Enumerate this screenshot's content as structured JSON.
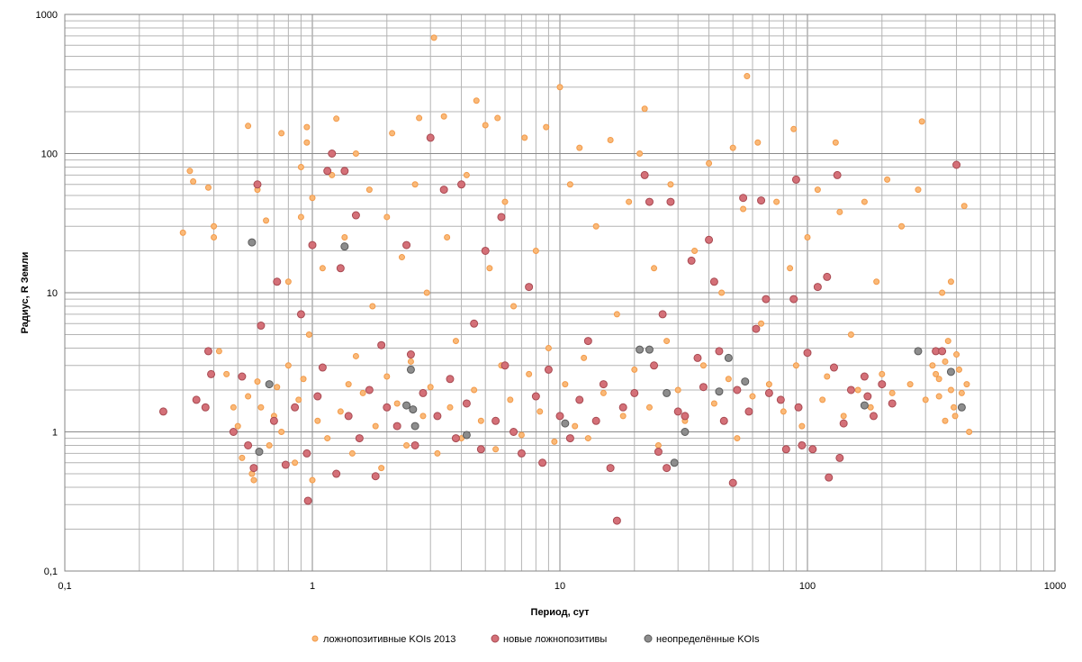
{
  "chart_data": {
    "type": "scatter",
    "title": "",
    "xlabel": "Период, сут",
    "ylabel": "Радиус, R Земли",
    "xscale": "log",
    "yscale": "log",
    "xlim": [
      0.1,
      1000
    ],
    "ylim": [
      0.1,
      1000
    ],
    "x_ticks": [
      "0,1",
      "1",
      "10",
      "100",
      "1000"
    ],
    "y_ticks": [
      "0,1",
      "1",
      "10",
      "100",
      "1000"
    ],
    "grid": "major and minor",
    "legend_position": "bottom",
    "series": [
      {
        "name": "ложнопозитивные KOIs 2013",
        "color": "#fab978",
        "edge": "#f29a4a",
        "points": [
          [
            0.3,
            27
          ],
          [
            0.32,
            75
          ],
          [
            0.33,
            63
          ],
          [
            0.38,
            57
          ],
          [
            0.4,
            25
          ],
          [
            0.4,
            30
          ],
          [
            0.42,
            3.8
          ],
          [
            0.45,
            2.6
          ],
          [
            0.48,
            1.5
          ],
          [
            0.5,
            1.1
          ],
          [
            0.52,
            0.65
          ],
          [
            0.55,
            158
          ],
          [
            0.55,
            1.8
          ],
          [
            0.57,
            0.5
          ],
          [
            0.58,
            0.45
          ],
          [
            0.6,
            55
          ],
          [
            0.6,
            2.3
          ],
          [
            0.62,
            1.5
          ],
          [
            0.65,
            33
          ],
          [
            0.67,
            0.8
          ],
          [
            0.7,
            1.3
          ],
          [
            0.72,
            2.1
          ],
          [
            0.75,
            140
          ],
          [
            0.75,
            1.0
          ],
          [
            0.8,
            12
          ],
          [
            0.8,
            3.0
          ],
          [
            0.85,
            0.6
          ],
          [
            0.88,
            1.7
          ],
          [
            0.9,
            80
          ],
          [
            0.9,
            35
          ],
          [
            0.92,
            2.4
          ],
          [
            0.95,
            155
          ],
          [
            0.95,
            120
          ],
          [
            0.97,
            5.0
          ],
          [
            1.0,
            48
          ],
          [
            1.0,
            0.45
          ],
          [
            1.05,
            1.2
          ],
          [
            1.1,
            2.9
          ],
          [
            1.1,
            15
          ],
          [
            1.15,
            0.9
          ],
          [
            1.2,
            70
          ],
          [
            1.25,
            178
          ],
          [
            1.3,
            1.4
          ],
          [
            1.35,
            25
          ],
          [
            1.4,
            2.2
          ],
          [
            1.45,
            0.7
          ],
          [
            1.5,
            100
          ],
          [
            1.5,
            3.5
          ],
          [
            1.6,
            1.9
          ],
          [
            1.7,
            55
          ],
          [
            1.75,
            8.0
          ],
          [
            1.8,
            1.1
          ],
          [
            1.9,
            0.55
          ],
          [
            2.0,
            2.5
          ],
          [
            2.0,
            35
          ],
          [
            2.1,
            140
          ],
          [
            2.2,
            1.6
          ],
          [
            2.3,
            18
          ],
          [
            2.4,
            0.8
          ],
          [
            2.5,
            3.2
          ],
          [
            2.6,
            60
          ],
          [
            2.7,
            180
          ],
          [
            2.8,
            1.3
          ],
          [
            2.9,
            10
          ],
          [
            3.0,
            2.1
          ],
          [
            3.1,
            680
          ],
          [
            3.2,
            0.7
          ],
          [
            3.4,
            185
          ],
          [
            3.5,
            25
          ],
          [
            3.6,
            1.5
          ],
          [
            3.8,
            4.5
          ],
          [
            4.0,
            0.9
          ],
          [
            4.2,
            70
          ],
          [
            4.5,
            2.0
          ],
          [
            4.6,
            240
          ],
          [
            4.8,
            1.2
          ],
          [
            5.0,
            160
          ],
          [
            5.2,
            15
          ],
          [
            5.5,
            0.75
          ],
          [
            5.6,
            180
          ],
          [
            5.8,
            3.0
          ],
          [
            6.0,
            45
          ],
          [
            6.3,
            1.7
          ],
          [
            6.5,
            8
          ],
          [
            7.0,
            0.95
          ],
          [
            7.2,
            130
          ],
          [
            7.5,
            2.6
          ],
          [
            8.0,
            20
          ],
          [
            8.3,
            1.4
          ],
          [
            8.8,
            155
          ],
          [
            9.0,
            4.0
          ],
          [
            9.5,
            0.85
          ],
          [
            10,
            300
          ],
          [
            10.5,
            2.2
          ],
          [
            11,
            60
          ],
          [
            11.5,
            1.1
          ],
          [
            12,
            110
          ],
          [
            12.5,
            3.4
          ],
          [
            13,
            0.9
          ],
          [
            14,
            30
          ],
          [
            15,
            1.9
          ],
          [
            16,
            125
          ],
          [
            17,
            7
          ],
          [
            18,
            1.3
          ],
          [
            19,
            45
          ],
          [
            20,
            2.8
          ],
          [
            21,
            100
          ],
          [
            22,
            210
          ],
          [
            23,
            1.5
          ],
          [
            24,
            15
          ],
          [
            25,
            0.8
          ],
          [
            27,
            4.5
          ],
          [
            28,
            60
          ],
          [
            30,
            2.0
          ],
          [
            32,
            1.2
          ],
          [
            35,
            20
          ],
          [
            38,
            3.0
          ],
          [
            40,
            85
          ],
          [
            42,
            1.6
          ],
          [
            45,
            10
          ],
          [
            48,
            2.4
          ],
          [
            50,
            110
          ],
          [
            52,
            0.9
          ],
          [
            55,
            40
          ],
          [
            57,
            360
          ],
          [
            60,
            1.8
          ],
          [
            63,
            120
          ],
          [
            65,
            6
          ],
          [
            70,
            2.2
          ],
          [
            75,
            45
          ],
          [
            80,
            1.4
          ],
          [
            85,
            15
          ],
          [
            88,
            150
          ],
          [
            90,
            3.0
          ],
          [
            95,
            1.1
          ],
          [
            100,
            25
          ],
          [
            110,
            55
          ],
          [
            115,
            1.7
          ],
          [
            120,
            2.5
          ],
          [
            130,
            120
          ],
          [
            135,
            38
          ],
          [
            140,
            1.3
          ],
          [
            150,
            5
          ],
          [
            160,
            2.0
          ],
          [
            170,
            45
          ],
          [
            180,
            1.5
          ],
          [
            190,
            12
          ],
          [
            200,
            2.6
          ],
          [
            210,
            65
          ],
          [
            220,
            1.9
          ],
          [
            240,
            30
          ],
          [
            260,
            2.2
          ],
          [
            280,
            55
          ],
          [
            290,
            170
          ],
          [
            300,
            1.7
          ],
          [
            320,
            3.0
          ],
          [
            340,
            2.4
          ],
          [
            350,
            10
          ],
          [
            360,
            1.2
          ],
          [
            370,
            4.5
          ],
          [
            380,
            2.0
          ],
          [
            390,
            1.5
          ],
          [
            400,
            3.6
          ],
          [
            410,
            2.8
          ],
          [
            420,
            1.9
          ],
          [
            430,
            42
          ],
          [
            440,
            2.2
          ],
          [
            450,
            1.0
          ],
          [
            380,
            12
          ],
          [
            360,
            3.2
          ],
          [
            340,
            1.8
          ],
          [
            330,
            2.6
          ],
          [
            395,
            1.3
          ]
        ]
      },
      {
        "name": "новые ложнопозитивы",
        "color": "#d47078",
        "edge": "#a84a52",
        "points": [
          [
            0.25,
            1.4
          ],
          [
            0.34,
            1.7
          ],
          [
            0.37,
            1.5
          ],
          [
            0.38,
            3.8
          ],
          [
            0.39,
            2.6
          ],
          [
            0.48,
            1.0
          ],
          [
            0.52,
            2.5
          ],
          [
            0.55,
            0.8
          ],
          [
            0.58,
            0.55
          ],
          [
            0.6,
            60
          ],
          [
            0.62,
            5.8
          ],
          [
            0.7,
            1.2
          ],
          [
            0.72,
            12
          ],
          [
            0.78,
            0.58
          ],
          [
            0.85,
            1.5
          ],
          [
            0.9,
            7
          ],
          [
            0.95,
            0.7
          ],
          [
            0.96,
            0.32
          ],
          [
            1.0,
            22
          ],
          [
            1.05,
            1.8
          ],
          [
            1.1,
            2.9
          ],
          [
            1.15,
            75
          ],
          [
            1.2,
            100
          ],
          [
            1.25,
            0.5
          ],
          [
            1.3,
            15
          ],
          [
            1.35,
            75
          ],
          [
            1.4,
            1.3
          ],
          [
            1.5,
            36
          ],
          [
            1.55,
            0.9
          ],
          [
            1.7,
            2.0
          ],
          [
            1.8,
            0.48
          ],
          [
            1.9,
            4.2
          ],
          [
            2.0,
            1.5
          ],
          [
            2.2,
            1.1
          ],
          [
            2.4,
            22
          ],
          [
            2.5,
            3.6
          ],
          [
            2.6,
            0.8
          ],
          [
            2.8,
            1.9
          ],
          [
            3.0,
            130
          ],
          [
            3.2,
            1.3
          ],
          [
            3.4,
            55
          ],
          [
            3.6,
            2.4
          ],
          [
            3.8,
            0.9
          ],
          [
            4.0,
            60
          ],
          [
            4.2,
            1.6
          ],
          [
            4.5,
            6
          ],
          [
            4.8,
            0.75
          ],
          [
            5.0,
            20
          ],
          [
            5.5,
            1.2
          ],
          [
            5.8,
            35
          ],
          [
            6.0,
            3.0
          ],
          [
            6.5,
            1.0
          ],
          [
            7.0,
            0.7
          ],
          [
            7.5,
            11
          ],
          [
            8.0,
            1.8
          ],
          [
            8.5,
            0.6
          ],
          [
            9.0,
            2.8
          ],
          [
            10,
            1.3
          ],
          [
            11,
            0.9
          ],
          [
            12,
            1.7
          ],
          [
            13,
            4.5
          ],
          [
            14,
            1.2
          ],
          [
            15,
            2.2
          ],
          [
            16,
            0.55
          ],
          [
            17,
            0.23
          ],
          [
            18,
            1.5
          ],
          [
            20,
            1.9
          ],
          [
            22,
            70
          ],
          [
            23,
            45
          ],
          [
            24,
            3.0
          ],
          [
            25,
            0.72
          ],
          [
            26,
            7
          ],
          [
            27,
            0.55
          ],
          [
            28,
            45
          ],
          [
            30,
            1.4
          ],
          [
            32,
            1.3
          ],
          [
            34,
            17
          ],
          [
            36,
            3.4
          ],
          [
            38,
            2.1
          ],
          [
            40,
            24
          ],
          [
            42,
            12
          ],
          [
            44,
            3.8
          ],
          [
            46,
            1.2
          ],
          [
            50,
            0.43
          ],
          [
            52,
            2.0
          ],
          [
            55,
            48
          ],
          [
            58,
            1.4
          ],
          [
            62,
            5.5
          ],
          [
            65,
            46
          ],
          [
            68,
            9
          ],
          [
            70,
            1.9
          ],
          [
            78,
            1.7
          ],
          [
            82,
            0.75
          ],
          [
            88,
            9
          ],
          [
            90,
            65
          ],
          [
            92,
            1.5
          ],
          [
            95,
            0.8
          ],
          [
            100,
            3.7
          ],
          [
            105,
            0.75
          ],
          [
            110,
            11
          ],
          [
            120,
            13
          ],
          [
            122,
            0.47
          ],
          [
            128,
            2.9
          ],
          [
            132,
            70
          ],
          [
            135,
            0.65
          ],
          [
            140,
            1.15
          ],
          [
            150,
            2.0
          ],
          [
            170,
            2.5
          ],
          [
            175,
            1.8
          ],
          [
            185,
            1.3
          ],
          [
            200,
            2.2
          ],
          [
            220,
            1.6
          ],
          [
            330,
            3.8
          ],
          [
            350,
            3.8
          ],
          [
            400,
            83
          ]
        ]
      },
      {
        "name": "неопределённые  KOIs",
        "color": "#8d8d8d",
        "edge": "#5b5b5b",
        "points": [
          [
            0.57,
            23
          ],
          [
            0.61,
            0.72
          ],
          [
            0.67,
            2.2
          ],
          [
            1.35,
            21.5
          ],
          [
            2.4,
            1.55
          ],
          [
            2.5,
            2.8
          ],
          [
            2.55,
            1.45
          ],
          [
            2.6,
            1.1
          ],
          [
            4.2,
            0.95
          ],
          [
            10.5,
            1.15
          ],
          [
            21,
            3.9
          ],
          [
            23,
            3.9
          ],
          [
            27,
            1.9
          ],
          [
            29,
            0.6
          ],
          [
            32,
            1.0
          ],
          [
            44,
            1.95
          ],
          [
            48,
            3.4
          ],
          [
            56,
            2.3
          ],
          [
            170,
            1.55
          ],
          [
            280,
            3.8
          ],
          [
            380,
            2.7
          ],
          [
            420,
            1.5
          ]
        ]
      }
    ]
  }
}
